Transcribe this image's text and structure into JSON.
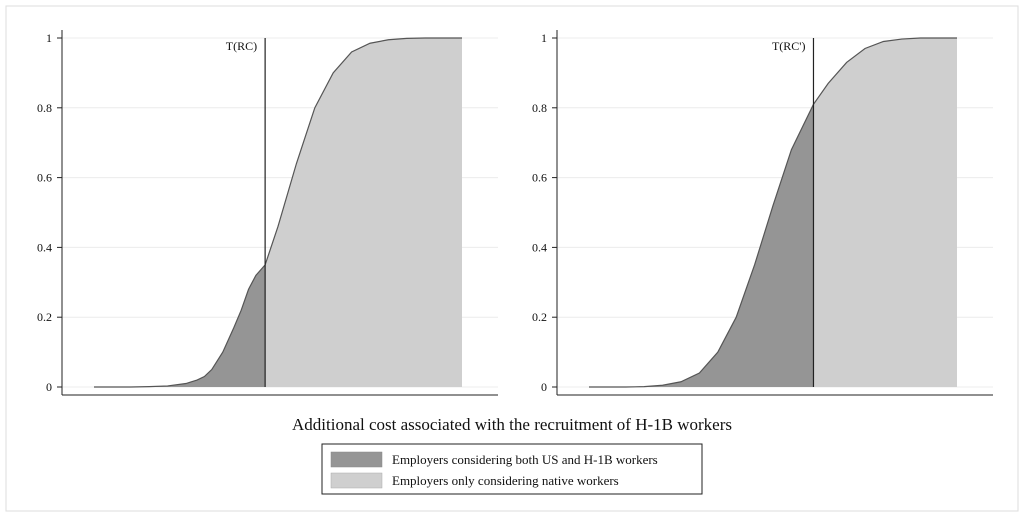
{
  "colors": {
    "dark_fill": "#959595",
    "light_fill": "#cfcfcf",
    "curve": "#555555",
    "axis": "#222222",
    "grid": "#ececec",
    "frame": "#dddddd"
  },
  "chart_data": {
    "type": "area",
    "xlabel": "Additional cost associated with the recruitment of H-1B workers",
    "legend": {
      "placement": "bottom-center",
      "entries": [
        {
          "label": "Employers considering both US and H-1B workers",
          "color": "#959595"
        },
        {
          "label": "Employers only considering native workers",
          "color": "#cfcfcf"
        }
      ]
    },
    "panels": [
      {
        "marker_label": "T(RC)",
        "threshold_x": 0.465,
        "ylim": [
          0,
          1
        ],
        "yticks": [
          "0",
          "0.2",
          "0.4",
          "0.6",
          "0.8",
          "1"
        ],
        "x": [
          0,
          0.05,
          0.1,
          0.15,
          0.2,
          0.25,
          0.28,
          0.3,
          0.32,
          0.35,
          0.38,
          0.4,
          0.42,
          0.44,
          0.465,
          0.5,
          0.55,
          0.6,
          0.65,
          0.7,
          0.75,
          0.8,
          0.85,
          0.9,
          0.95,
          1.0
        ],
        "y": [
          0,
          0,
          0,
          0.001,
          0.003,
          0.01,
          0.02,
          0.03,
          0.05,
          0.1,
          0.17,
          0.22,
          0.28,
          0.32,
          0.35,
          0.46,
          0.64,
          0.8,
          0.9,
          0.96,
          0.985,
          0.995,
          0.999,
          1,
          1,
          1
        ]
      },
      {
        "marker_label": "T(RC')",
        "threshold_x": 0.61,
        "ylim": [
          0,
          1
        ],
        "yticks": [
          "0",
          "0.2",
          "0.4",
          "0.6",
          "0.8",
          "1"
        ],
        "x": [
          0,
          0.05,
          0.1,
          0.15,
          0.2,
          0.25,
          0.3,
          0.35,
          0.4,
          0.45,
          0.5,
          0.55,
          0.61,
          0.65,
          0.7,
          0.75,
          0.8,
          0.85,
          0.9,
          0.95,
          1.0
        ],
        "y": [
          0,
          0,
          0,
          0.001,
          0.005,
          0.015,
          0.04,
          0.1,
          0.2,
          0.35,
          0.52,
          0.68,
          0.81,
          0.87,
          0.93,
          0.97,
          0.99,
          0.997,
          1,
          1,
          1
        ]
      }
    ]
  }
}
